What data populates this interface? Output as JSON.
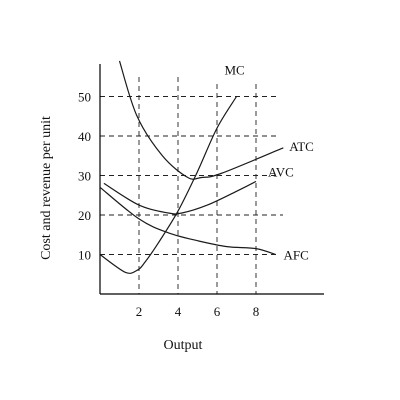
{
  "chart_data": {
    "type": "line",
    "title": "",
    "xlabel": "Output",
    "ylabel": "Cost and revenue per unit",
    "xlim": [
      0,
      11.5
    ],
    "ylim": [
      0,
      60
    ],
    "xticks": [
      "2",
      "4",
      "6",
      "8"
    ],
    "yticks": [
      "10",
      "20",
      "30",
      "40",
      "50"
    ],
    "grid": "dashed lines at x = 2, 4, 6, 8 and y = 10, 20, 30, 40, 50",
    "legend": "labels at curve ends",
    "series": [
      {
        "name": "MC",
        "x": [
          0,
          1.3,
          1.9,
          2.3,
          3.0,
          4.0,
          5.0,
          6.0,
          7.0
        ],
        "y": [
          10,
          5.5,
          6,
          8,
          13,
          21,
          31,
          42,
          50
        ]
      },
      {
        "name": "ATC",
        "x": [
          1,
          1.9,
          3.2,
          4.5,
          5.2,
          6.2,
          9.4
        ],
        "y": [
          59,
          45,
          35,
          29.5,
          29.5,
          30.5,
          37
        ]
      },
      {
        "name": "AVC",
        "x": [
          0.2,
          2.0,
          3.5,
          4.2,
          5.5,
          7.0,
          8.0
        ],
        "y": [
          28,
          22.5,
          20.5,
          20.5,
          22.5,
          26,
          28.5
        ]
      },
      {
        "name": "AFC",
        "x": [
          0,
          2.0,
          3.5,
          5.0,
          6.5,
          8.0,
          9.0
        ],
        "y": [
          27,
          19,
          15.5,
          13.5,
          12,
          11.5,
          10
        ]
      }
    ]
  }
}
